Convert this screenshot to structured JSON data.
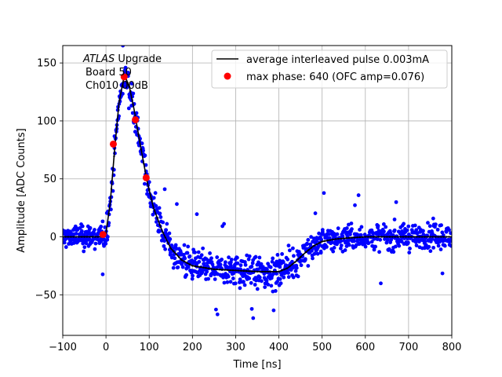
{
  "chart_data": {
    "type": "scatter",
    "title": "",
    "xlabel": "Time [ns]",
    "ylabel": "Amplitude [ADC Counts]",
    "xlim": [
      -100,
      800
    ],
    "ylim": [
      -85,
      165
    ],
    "xticks": [
      -100,
      0,
      100,
      200,
      300,
      400,
      500,
      600,
      700,
      800
    ],
    "yticks": [
      -50,
      0,
      50,
      100,
      150
    ],
    "grid": true,
    "annotation": {
      "line1_italic": "ATLAS",
      "line1_rest": " Upgrade",
      "line2": "Board 50",
      "line3": "Ch010 00dB"
    },
    "legend": {
      "placement": "top-right",
      "entries": [
        {
          "label": "average interleaved pulse 0.003mA",
          "marker": "line",
          "color": "#000000"
        },
        {
          "label": "max phase: 640 (OFC amp=0.076)",
          "marker": "dot",
          "color": "#ff0000"
        }
      ]
    },
    "colors": {
      "scatter": "#0000ff",
      "average": "#000000",
      "phase": "#ff0000",
      "grid": "#b0b0b0"
    },
    "series": [
      {
        "name": "average interleaved pulse 0.003mA",
        "kind": "line",
        "points": [
          [
            -100,
            0
          ],
          [
            -10,
            0
          ],
          [
            0,
            3
          ],
          [
            10,
            30
          ],
          [
            20,
            75
          ],
          [
            30,
            115
          ],
          [
            40,
            135
          ],
          [
            45,
            138
          ],
          [
            55,
            128
          ],
          [
            65,
            110
          ],
          [
            80,
            78
          ],
          [
            95,
            48
          ],
          [
            110,
            25
          ],
          [
            130,
            5
          ],
          [
            150,
            -10
          ],
          [
            175,
            -20
          ],
          [
            200,
            -25
          ],
          [
            250,
            -28
          ],
          [
            300,
            -29
          ],
          [
            350,
            -30
          ],
          [
            400,
            -30
          ],
          [
            420,
            -27
          ],
          [
            440,
            -21
          ],
          [
            460,
            -14
          ],
          [
            480,
            -8
          ],
          [
            500,
            -4
          ],
          [
            530,
            -2
          ],
          [
            560,
            -1
          ],
          [
            600,
            0
          ],
          [
            700,
            0
          ],
          [
            800,
            0
          ]
        ]
      },
      {
        "name": "max phase: 640 (OFC amp=0.076)",
        "kind": "points",
        "points": [
          [
            -7,
            2
          ],
          [
            17,
            80
          ],
          [
            42,
            138
          ],
          [
            68,
            101
          ],
          [
            93,
            51
          ]
        ]
      }
    ],
    "scatter_spread": {
      "noise_halfwidth": 22,
      "sample_step_ns": 0.8,
      "outlier_note": "sparse outliers beyond band"
    }
  }
}
